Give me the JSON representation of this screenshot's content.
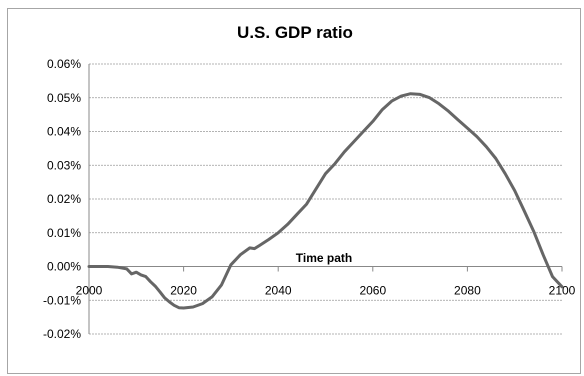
{
  "chart_data": {
    "type": "line",
    "title": "U.S. GDP ratio",
    "xlabel": "",
    "ylabel": "",
    "xlim": [
      2000,
      2100
    ],
    "ylim": [
      -0.02,
      0.06
    ],
    "x_ticks": [
      "2000",
      "2020",
      "2040",
      "2060",
      "2080",
      "2100"
    ],
    "y_ticks": [
      "0.06%",
      "0.05%",
      "0.04%",
      "0.03%",
      "0.02%",
      "0.01%",
      "0.00%",
      "-0.01%",
      "-0.02%"
    ],
    "grid": "horizontal",
    "annotation": "Time path",
    "line_color": "#666666",
    "series": [
      {
        "name": "",
        "units": "percent",
        "x": [
          2000,
          2002,
          2004,
          2006,
          2008,
          2009,
          2010,
          2011,
          2012,
          2013,
          2014,
          2015,
          2016,
          2017,
          2018,
          2019,
          2020,
          2022,
          2024,
          2026,
          2028,
          2030,
          2032,
          2034,
          2035,
          2036,
          2038,
          2040,
          2042,
          2044,
          2046,
          2048,
          2050,
          2052,
          2054,
          2056,
          2058,
          2060,
          2062,
          2064,
          2066,
          2068,
          2070,
          2072,
          2074,
          2076,
          2078,
          2080,
          2082,
          2084,
          2086,
          2088,
          2090,
          2092,
          2094,
          2096,
          2098,
          2100
        ],
        "y": [
          0.0,
          0.0,
          0.0,
          -0.0002,
          -0.0007,
          -0.0022,
          -0.0017,
          -0.0025,
          -0.003,
          -0.0045,
          -0.0058,
          -0.0075,
          -0.0093,
          -0.0105,
          -0.0115,
          -0.0122,
          -0.0123,
          -0.012,
          -0.011,
          -0.009,
          -0.0055,
          0.0005,
          0.0035,
          0.0055,
          0.0053,
          0.0062,
          0.008,
          0.01,
          0.0125,
          0.0155,
          0.0185,
          0.023,
          0.0275,
          0.0305,
          0.034,
          0.037,
          0.04,
          0.043,
          0.0465,
          0.049,
          0.0505,
          0.0512,
          0.051,
          0.05,
          0.0482,
          0.046,
          0.0435,
          0.041,
          0.0385,
          0.0355,
          0.032,
          0.0275,
          0.0225,
          0.0165,
          0.0105,
          0.0035,
          -0.003,
          -0.006
        ]
      }
    ]
  }
}
